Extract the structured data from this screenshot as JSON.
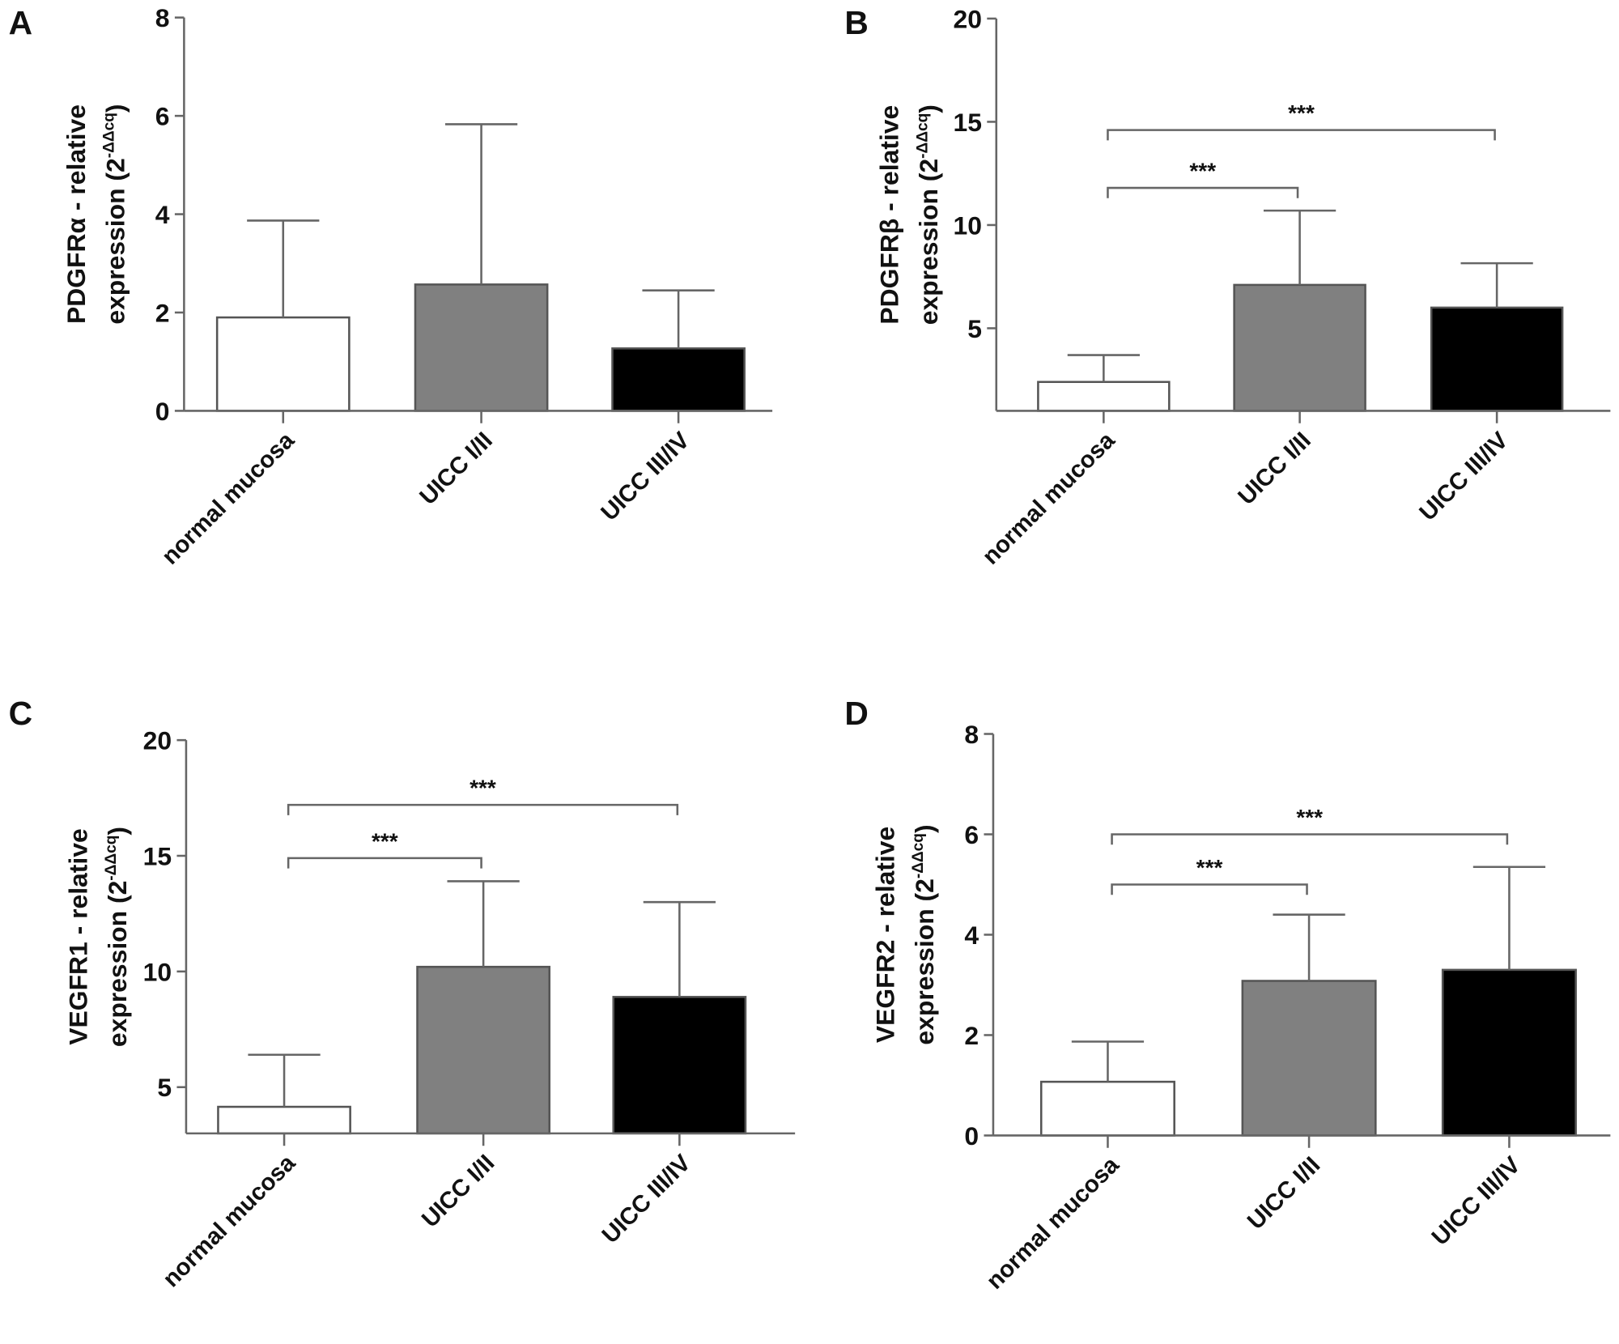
{
  "chart_data": [
    {
      "panel": "A",
      "type": "bar",
      "ylabel": [
        "PDGFRα - relative",
        "expression (2",
        "-ΔΔcq",
        ")"
      ],
      "ylim": [
        0,
        8
      ],
      "yticks": [
        0,
        2,
        4,
        6,
        8
      ],
      "categories": [
        "normal mucosa",
        "UICC I/II",
        "UICC III/IV"
      ],
      "values": [
        1.9,
        2.57,
        1.27
      ],
      "error_upper": [
        3.87,
        5.83,
        2.45
      ],
      "colors": [
        "#ffffff",
        "#808080",
        "#000000"
      ],
      "significance": []
    },
    {
      "panel": "B",
      "type": "bar",
      "ylabel": [
        "PDGFRβ - relative",
        "expression (2",
        "-ΔΔcq",
        ")"
      ],
      "ylim": [
        1,
        20
      ],
      "yticks": [
        5,
        10,
        15,
        20
      ],
      "categories": [
        "normal mucosa",
        "UICC I/II",
        "UICC III/IV"
      ],
      "values": [
        2.4,
        7.1,
        6.0
      ],
      "error_upper": [
        3.7,
        10.7,
        8.15
      ],
      "colors": [
        "#ffffff",
        "#808080",
        "#000000"
      ],
      "significance": [
        {
          "from": 0,
          "to": 1,
          "y": 11.8,
          "label": "***"
        },
        {
          "from": 0,
          "to": 2,
          "y": 14.6,
          "label": "***"
        }
      ]
    },
    {
      "panel": "C",
      "type": "bar",
      "ylabel": [
        "VEGFR1 - relative",
        "expression (2",
        "-ΔΔcq",
        ")"
      ],
      "ylim": [
        3,
        20
      ],
      "yticks": [
        5,
        10,
        15,
        20
      ],
      "categories": [
        "normal mucosa",
        "UICC I/II",
        "UICC III/IV"
      ],
      "values": [
        4.15,
        10.2,
        8.9
      ],
      "error_upper": [
        6.4,
        13.9,
        13.0
      ],
      "colors": [
        "#ffffff",
        "#808080",
        "#000000"
      ],
      "significance": [
        {
          "from": 0,
          "to": 1,
          "y": 14.9,
          "label": "***"
        },
        {
          "from": 0,
          "to": 2,
          "y": 17.2,
          "label": "***"
        }
      ]
    },
    {
      "panel": "D",
      "type": "bar",
      "ylabel": [
        "VEGFR2 - relative",
        "expression (2",
        "-ΔΔcq",
        ")"
      ],
      "ylim": [
        0,
        8
      ],
      "yticks": [
        0,
        2,
        4,
        6,
        8
      ],
      "categories": [
        "normal mucosa",
        "UICC I/II",
        "UICC III/IV"
      ],
      "values": [
        1.07,
        3.08,
        3.3
      ],
      "error_upper": [
        1.87,
        4.4,
        5.35
      ],
      "colors": [
        "#ffffff",
        "#808080",
        "#000000"
      ],
      "significance": [
        {
          "from": 0,
          "to": 1,
          "y": 5.0,
          "label": "***"
        },
        {
          "from": 0,
          "to": 2,
          "y": 6.0,
          "label": "***"
        }
      ]
    }
  ]
}
